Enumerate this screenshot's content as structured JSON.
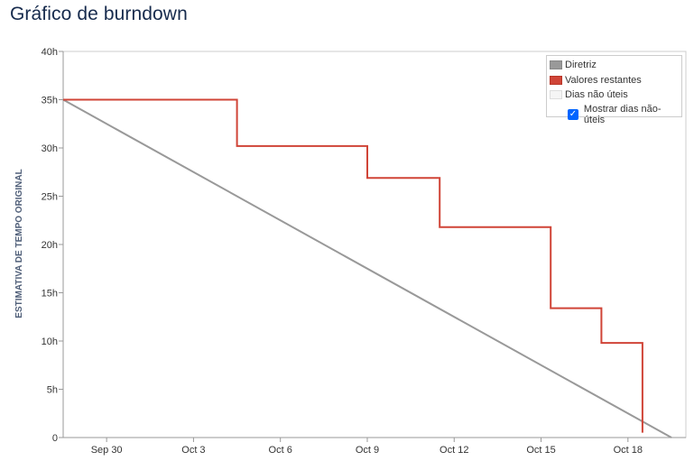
{
  "page": {
    "title": "Gráfico de burndown"
  },
  "chart_data": {
    "type": "line",
    "title": "Gráfico de burndown",
    "ylabel": "ESTIMATIVA DE TEMPO ORIGINAL",
    "xlabel": "",
    "ylim": [
      0,
      40
    ],
    "y_ticks": [
      0,
      5,
      10,
      15,
      20,
      25,
      30,
      35,
      40
    ],
    "y_tick_labels": [
      "0",
      "5h",
      "10h",
      "15h",
      "20h",
      "25h",
      "30h",
      "35h",
      "40h"
    ],
    "x_tick_labels": [
      "Sep 30",
      "Oct 3",
      "Oct 6",
      "Oct 9",
      "Oct 12",
      "Oct 15",
      "Oct 18"
    ],
    "x_tick_dates": [
      "2023-09-30",
      "2023-10-03",
      "2023-10-06",
      "2023-10-09",
      "2023-10-12",
      "2023-10-15",
      "2023-10-18"
    ],
    "xlim": [
      "2023-09-28 12:00",
      "2023-10-20"
    ],
    "grid": false,
    "legend_position": "top-right",
    "series": [
      {
        "name": "Diretriz",
        "color": "#999999",
        "step": false,
        "points": [
          [
            "2023-09-28 12:00",
            35
          ],
          [
            "2023-10-19 12:00",
            0
          ]
        ]
      },
      {
        "name": "Valores restantes",
        "color": "#d04437",
        "step": true,
        "points": [
          [
            "2023-09-28 12:00",
            35
          ],
          [
            "2023-10-04 12:00",
            30.2
          ],
          [
            "2023-10-09",
            26.9
          ],
          [
            "2023-10-11 12:00",
            21.8
          ],
          [
            "2023-10-15 08:00",
            13.4
          ],
          [
            "2023-10-17 02:00",
            9.8
          ],
          [
            "2023-10-18 12:00",
            0.5
          ]
        ]
      }
    ],
    "legend": [
      {
        "label": "Diretriz",
        "color": "#999999"
      },
      {
        "label": "Valores restantes",
        "color": "#d04437"
      },
      {
        "label": "Dias não úteis",
        "color": "#f5f5f5"
      }
    ],
    "show_non_working_days": {
      "label": "Mostrar dias não-úteis",
      "checked": true
    }
  }
}
